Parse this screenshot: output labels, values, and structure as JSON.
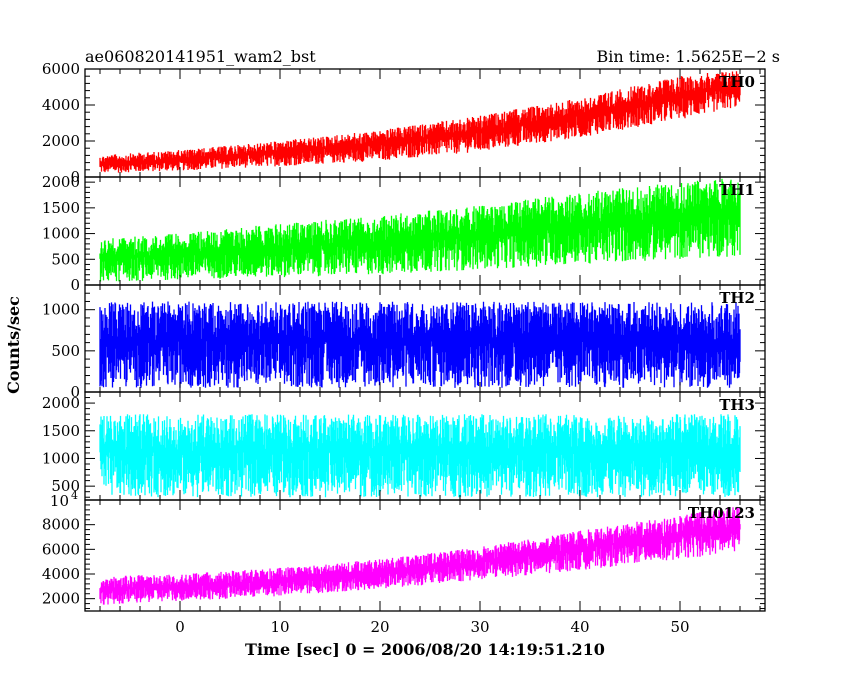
{
  "chart_data": {
    "type": "line",
    "title_left": "ae060820141951_wam2_bst",
    "title_right": "Bin time: 1.5625E−2 s",
    "xlabel": "Time [sec] 0 = 2006/08/20 14:19:51.210",
    "ylabel": "Counts/sec",
    "xlim": [
      -9.5,
      58.5
    ],
    "x_ticks": [
      0,
      10,
      20,
      30,
      40,
      50
    ],
    "x_tick_labels": [
      "0",
      "10",
      "20",
      "30",
      "40",
      "50"
    ],
    "x_data_range": [
      -8,
      56
    ],
    "bin_time": 0.015625,
    "grid": false,
    "panels": [
      {
        "name": "TH0",
        "color": "#ff0000",
        "ylim": [
          0,
          6000
        ],
        "y_ticks": [
          0,
          2000,
          4000,
          6000
        ],
        "y_tick_labels": [
          "0",
          "2000",
          "4000",
          "6000"
        ],
        "envelope": {
          "x": [
            -8,
            0,
            10,
            20,
            30,
            40,
            50,
            56
          ],
          "low": [
            200,
            350,
            600,
            900,
            1400,
            2200,
            3200,
            3900
          ],
          "high": [
            1200,
            1500,
            2000,
            2600,
            3400,
            4400,
            5600,
            6000
          ]
        }
      },
      {
        "name": "TH1",
        "color": "#00ff00",
        "ylim": [
          0,
          2100
        ],
        "y_ticks": [
          0,
          500,
          1000,
          1500,
          2000
        ],
        "y_tick_labels": [
          "0",
          "500",
          "1000",
          "1500",
          "2000"
        ],
        "envelope": {
          "x": [
            -8,
            0,
            10,
            20,
            30,
            40,
            50,
            56
          ],
          "low": [
            50,
            100,
            150,
            200,
            300,
            400,
            500,
            550
          ],
          "high": [
            900,
            1000,
            1200,
            1350,
            1550,
            1800,
            2000,
            2100
          ]
        }
      },
      {
        "name": "TH2",
        "color": "#0000ff",
        "ylim": [
          0,
          1300
        ],
        "y_ticks": [
          0,
          500,
          1000
        ],
        "y_tick_labels": [
          "0",
          "500",
          "1000"
        ],
        "envelope": {
          "x": [
            -8,
            56
          ],
          "low": [
            50,
            50
          ],
          "high": [
            1100,
            1100
          ]
        }
      },
      {
        "name": "TH3",
        "color": "#00ffff",
        "ylim": [
          250,
          2200
        ],
        "y_ticks": [
          500,
          1000,
          1500,
          2000
        ],
        "y_tick_labels": [
          "500",
          "1000",
          "1500",
          "2000"
        ],
        "envelope": {
          "x": [
            -8,
            56
          ],
          "low": [
            300,
            300
          ],
          "high": [
            1800,
            1800
          ]
        }
      },
      {
        "name": "TH0123",
        "color": "#ff00ff",
        "ylim": [
          1000,
          10000
        ],
        "y_ticks": [
          2000,
          4000,
          6000,
          8000
        ],
        "y_tick_labels": [
          "2000",
          "4000",
          "6000",
          "8000"
        ],
        "y_top_label_base": "10",
        "y_top_label_exp": "4",
        "envelope": {
          "x": [
            -8,
            0,
            10,
            20,
            30,
            40,
            50,
            56
          ],
          "low": [
            1500,
            1800,
            2200,
            2800,
            3500,
            4300,
            5200,
            5800
          ],
          "high": [
            3800,
            4000,
            4500,
            5200,
            6200,
            7500,
            8800,
            9500
          ]
        }
      }
    ]
  }
}
